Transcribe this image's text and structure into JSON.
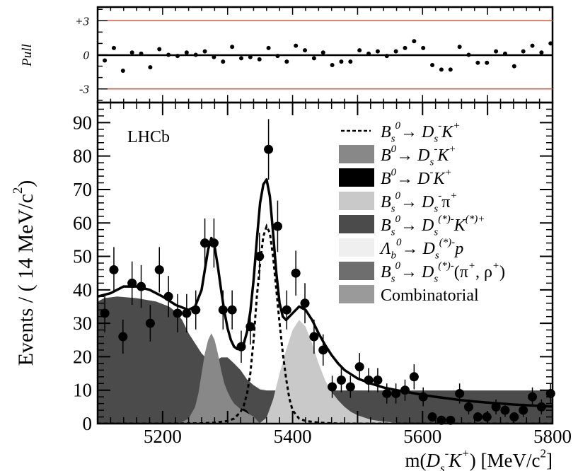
{
  "chart_data": [
    {
      "type": "scatter",
      "title": "",
      "ylabel": "Pull",
      "ylim": [
        -4.2,
        4.2
      ],
      "ytick_labels": [
        "+3",
        "0",
        "-3"
      ],
      "reference_lines": [
        3,
        -3
      ],
      "reference_line_color": "#e0543a",
      "x": [
        5111,
        5125,
        5139,
        5153,
        5167,
        5181,
        5195,
        5209,
        5223,
        5237,
        5251,
        5265,
        5279,
        5293,
        5307,
        5321,
        5335,
        5349,
        5363,
        5377,
        5391,
        5405,
        5419,
        5433,
        5447,
        5461,
        5475,
        5489,
        5503,
        5517,
        5531,
        5545,
        5559,
        5573,
        5587,
        5601,
        5615,
        5629,
        5643,
        5657,
        5671,
        5685,
        5699,
        5713,
        5727,
        5741,
        5755,
        5769,
        5783,
        5797
      ],
      "values": [
        -0.5,
        0.6,
        -1.4,
        0.2,
        0.1,
        -1.1,
        0.5,
        0.0,
        -0.1,
        0.2,
        0.0,
        0.3,
        -0.2,
        -0.6,
        0.7,
        -0.3,
        -0.2,
        -0.4,
        0.6,
        -0.1,
        -0.6,
        0.8,
        0.4,
        -0.3,
        0.2,
        -0.9,
        -0.6,
        -0.6,
        0.4,
        0.1,
        0.3,
        -0.1,
        0.3,
        0.6,
        1.2,
        0.6,
        -0.9,
        -1.3,
        -1.3,
        0.7,
        0.0,
        -0.7,
        -0.7,
        0.3,
        0.1,
        -1.0,
        0.3,
        0.8,
        0.2,
        1.0
      ]
    },
    {
      "type": "scatter",
      "title": "",
      "annotation": "LHCb",
      "xlabel_parts": [
        "m(",
        "D",
        "s",
        "-",
        "K",
        "+",
        ") [MeV/c",
        "2",
        "]"
      ],
      "ylabel_parts": [
        "Events / ( 14 MeV/c",
        "2",
        ")"
      ],
      "xlim": [
        5100,
        5800
      ],
      "ylim": [
        0,
        96
      ],
      "xticks": [
        5200,
        5400,
        5600,
        5800
      ],
      "yticks": [
        0,
        10,
        20,
        30,
        40,
        50,
        60,
        70,
        80,
        90
      ],
      "legend_position": "top-right",
      "grid": false,
      "data_points": {
        "x": [
          5111,
          5125,
          5139,
          5153,
          5167,
          5181,
          5195,
          5209,
          5223,
          5237,
          5251,
          5265,
          5279,
          5293,
          5307,
          5321,
          5335,
          5349,
          5363,
          5377,
          5391,
          5405,
          5419,
          5433,
          5447,
          5461,
          5475,
          5489,
          5503,
          5517,
          5531,
          5545,
          5559,
          5573,
          5587,
          5601,
          5615,
          5629,
          5643,
          5657,
          5671,
          5685,
          5699,
          5713,
          5727,
          5741,
          5755,
          5769,
          5783,
          5797
        ],
        "y": [
          33,
          46,
          26,
          42,
          41,
          30,
          46,
          38,
          33,
          33,
          34,
          54,
          54,
          34,
          34,
          23,
          29,
          50,
          82,
          59,
          34,
          45,
          36,
          26,
          22,
          11,
          13,
          11,
          17,
          13,
          13,
          9,
          9,
          10,
          14,
          8,
          2,
          1,
          1,
          9,
          5,
          2,
          2,
          5,
          4,
          2,
          4,
          8,
          5,
          9
        ],
        "xerr": 7
      },
      "series": [
        {
          "name": "total fit",
          "x": [
            5100,
            5120,
            5140,
            5160,
            5180,
            5200,
            5220,
            5240,
            5250,
            5260,
            5265,
            5270,
            5275,
            5280,
            5285,
            5290,
            5295,
            5300,
            5305,
            5310,
            5315,
            5320,
            5325,
            5330,
            5335,
            5340,
            5345,
            5350,
            5355,
            5360,
            5365,
            5370,
            5375,
            5380,
            5385,
            5390,
            5395,
            5400,
            5410,
            5420,
            5430,
            5440,
            5450,
            5460,
            5470,
            5480,
            5500,
            5520,
            5540,
            5560,
            5580,
            5600,
            5620,
            5640,
            5660,
            5680,
            5700,
            5720,
            5740,
            5760,
            5780,
            5800
          ],
          "y": [
            38,
            39,
            41,
            41,
            40,
            38,
            35.5,
            34,
            35,
            40,
            46,
            52,
            55.5,
            53,
            47,
            40,
            33.5,
            28.5,
            25,
            23,
            22.3,
            22.5,
            24,
            27.5,
            33.5,
            43,
            55,
            66,
            71.5,
            73,
            68,
            57,
            45,
            36,
            32,
            31,
            32,
            33,
            35,
            34,
            31,
            27,
            23.5,
            20.5,
            18,
            16,
            13.5,
            12,
            10.8,
            10,
            9.3,
            8.6,
            8,
            7.5,
            7,
            6.6,
            6.3,
            6,
            5.7,
            5.5,
            5.3,
            5.1
          ]
        },
        {
          "name": "Combinatorial",
          "color": "#9a9a9a",
          "x": [
            5100,
            5800
          ],
          "y": [
            4,
            4
          ]
        },
        {
          "name": "B_s^0 -> D_s^(*)- (pi+, rho+)",
          "color": "#6e6e6e",
          "x": [
            5100,
            5130,
            5160,
            5190,
            5220,
            5240,
            5260,
            5280,
            5300,
            5320,
            5340,
            5360,
            5380,
            5400,
            5420,
            5440,
            5460,
            5480,
            5500,
            5520,
            5540,
            5560,
            5580,
            5600,
            5800
          ],
          "y": [
            13.5,
            13.5,
            13,
            12.5,
            12,
            11.8,
            11.5,
            11,
            10.5,
            9.8,
            8.8,
            7.8,
            7.2,
            7,
            7,
            7,
            7,
            7,
            7,
            6.8,
            6.3,
            5.5,
            4.7,
            4,
            4
          ]
        },
        {
          "name": "Lambda_b^0 -> D_s^(*)- p",
          "color": "#efefef",
          "x": [
            5100,
            5130,
            5160,
            5190,
            5220,
            5240,
            5260,
            5280,
            5300,
            5320,
            5340,
            5360,
            5380,
            5400,
            5420,
            5440,
            5460,
            5480,
            5500,
            5520,
            5540,
            5560,
            5580,
            5600,
            5800
          ],
          "y": [
            14.5,
            14.5,
            14.2,
            13.8,
            13.5,
            13.6,
            13.8,
            13.8,
            13.5,
            12.8,
            11.5,
            10,
            8.8,
            8.3,
            8.3,
            8.6,
            9,
            9.5,
            10,
            9.6,
            8.4,
            6.8,
            5,
            4.2,
            4
          ]
        },
        {
          "name": "B_s^0 -> D_s^(*)- K^(*)+",
          "color": "#4b4b4b",
          "x": [
            5100,
            5110,
            5130,
            5160,
            5190,
            5210,
            5220,
            5230,
            5240,
            5250,
            5260,
            5270,
            5280,
            5290,
            5300,
            5310,
            5320,
            5330,
            5340,
            5350,
            5360,
            5800
          ],
          "y": [
            36.5,
            37.5,
            38,
            37.5,
            36.5,
            35,
            33.5,
            31,
            27,
            24,
            21,
            19,
            18.5,
            19.8,
            19.8,
            18,
            16,
            13.2,
            11.5,
            10.2,
            9.9,
            9.9
          ]
        },
        {
          "name": "B_s^0 -> D_s^- pi+",
          "color": "#c9c9c9",
          "x": [
            5100,
            5340,
            5350,
            5360,
            5370,
            5380,
            5390,
            5400,
            5410,
            5420,
            5430,
            5440,
            5450,
            5460,
            5470,
            5480,
            5490,
            5500,
            5520,
            5540,
            5560,
            5580,
            5600,
            5800
          ],
          "y": [
            0,
            0,
            0.2,
            1.8,
            7.2,
            15,
            22,
            28,
            31,
            29,
            24,
            18,
            13,
            9.5,
            7,
            5,
            3.5,
            2.5,
            1.2,
            0.6,
            0.3,
            0.1,
            0,
            0
          ]
        },
        {
          "name": "B^0 -> D^- K^+",
          "color": "#000000",
          "x": [
            5100,
            5305,
            5310,
            5315,
            5320,
            5325,
            5330,
            5335,
            5340,
            5345,
            5350,
            5800
          ],
          "y": [
            0,
            0,
            1,
            2.6,
            4,
            4.5,
            3.8,
            2.4,
            1,
            0.2,
            0,
            0
          ]
        },
        {
          "name": "B^0 -> D_s^- K^+",
          "color": "#888888",
          "x": [
            5100,
            5220,
            5230,
            5240,
            5250,
            5255,
            5260,
            5265,
            5270,
            5275,
            5280,
            5285,
            5290,
            5295,
            5300,
            5305,
            5310,
            5320,
            5330,
            5340,
            5350,
            5800
          ],
          "y": [
            0,
            0,
            0.5,
            1.5,
            5,
            9,
            15,
            21,
            25,
            27,
            25,
            21,
            16,
            12,
            9.5,
            7.5,
            6,
            4.3,
            3.2,
            2.1,
            0,
            0
          ]
        },
        {
          "name": "B_s^0 -> D_s^- K^+",
          "style": "dashed",
          "x": [
            5100,
            5200,
            5260,
            5280,
            5300,
            5310,
            5320,
            5325,
            5330,
            5335,
            5340,
            5345,
            5350,
            5355,
            5360,
            5365,
            5370,
            5375,
            5380,
            5385,
            5390,
            5395,
            5400,
            5410,
            5420,
            5440,
            5460,
            5480,
            5800
          ],
          "y": [
            0,
            0,
            0.1,
            0.3,
            0.8,
            1.5,
            3.5,
            5.5,
            9,
            15,
            25,
            38,
            48,
            56,
            59,
            57,
            50,
            40,
            30,
            21,
            13.5,
            7.5,
            4,
            1.5,
            0.8,
            0.3,
            0.1,
            0,
            0
          ]
        }
      ],
      "legend": [
        {
          "key": "bs_dsk",
          "parts": [
            [
              "B",
              "n"
            ],
            [
              "s",
              "sub"
            ],
            [
              "0",
              "sup"
            ],
            [
              "→ ",
              "n"
            ],
            [
              "D",
              "n"
            ],
            [
              "s",
              "sub"
            ],
            [
              "-",
              "sup"
            ],
            [
              "K",
              "n"
            ],
            [
              "+",
              "sup"
            ]
          ]
        },
        {
          "key": "b0_dsk",
          "parts": [
            [
              "B",
              "n"
            ],
            [
              "0",
              "sup"
            ],
            [
              "→ ",
              "n"
            ],
            [
              "D",
              "n"
            ],
            [
              "s",
              "sub"
            ],
            [
              "-",
              "sup"
            ],
            [
              "K",
              "n"
            ],
            [
              "+",
              "sup"
            ]
          ]
        },
        {
          "key": "b0_dk",
          "parts": [
            [
              "B",
              "n"
            ],
            [
              "0",
              "sup"
            ],
            [
              "→ ",
              "n"
            ],
            [
              "D",
              "n"
            ],
            [
              "-",
              "sup"
            ],
            [
              "K",
              "n"
            ],
            [
              "+",
              "sup"
            ]
          ]
        },
        {
          "key": "bs_dspi",
          "parts": [
            [
              "B",
              "n"
            ],
            [
              "s",
              "sub"
            ],
            [
              "0",
              "sup"
            ],
            [
              "→ ",
              "n"
            ],
            [
              "D",
              "n"
            ],
            [
              "s",
              "sub"
            ],
            [
              "-",
              "sup"
            ],
            [
              "π",
              "n"
            ],
            [
              "+",
              "sup"
            ]
          ]
        },
        {
          "key": "bs_dsstkst",
          "parts": [
            [
              "B",
              "n"
            ],
            [
              "s",
              "sub"
            ],
            [
              "0",
              "sup"
            ],
            [
              "→ ",
              "n"
            ],
            [
              "D",
              "n"
            ],
            [
              "s",
              "sub"
            ],
            [
              "(*)-",
              "sup"
            ],
            [
              "K",
              "n"
            ],
            [
              "(*)+",
              "sup"
            ]
          ]
        },
        {
          "key": "lb_dsp",
          "parts": [
            [
              "Λ",
              "n"
            ],
            [
              "b",
              "sub"
            ],
            [
              "0",
              "sup"
            ],
            [
              "→ ",
              "n"
            ],
            [
              "D",
              "n"
            ],
            [
              "s",
              "sub"
            ],
            [
              "(*)-",
              "sup"
            ],
            [
              "p",
              "n"
            ]
          ]
        },
        {
          "key": "bs_dspirho",
          "parts": [
            [
              "B",
              "n"
            ],
            [
              "s",
              "sub"
            ],
            [
              "0",
              "sup"
            ],
            [
              "→ ",
              "n"
            ],
            [
              "D",
              "n"
            ],
            [
              "s",
              "sub"
            ],
            [
              "(*)-",
              "sup"
            ],
            [
              "(π",
              "n"
            ],
            [
              "+",
              "sup"
            ],
            [
              ", ρ",
              "n"
            ],
            [
              "+",
              "sup"
            ],
            [
              ")",
              "n"
            ]
          ]
        },
        {
          "key": "comb",
          "parts": [
            [
              "Combinatorial",
              "n"
            ]
          ]
        }
      ]
    }
  ]
}
